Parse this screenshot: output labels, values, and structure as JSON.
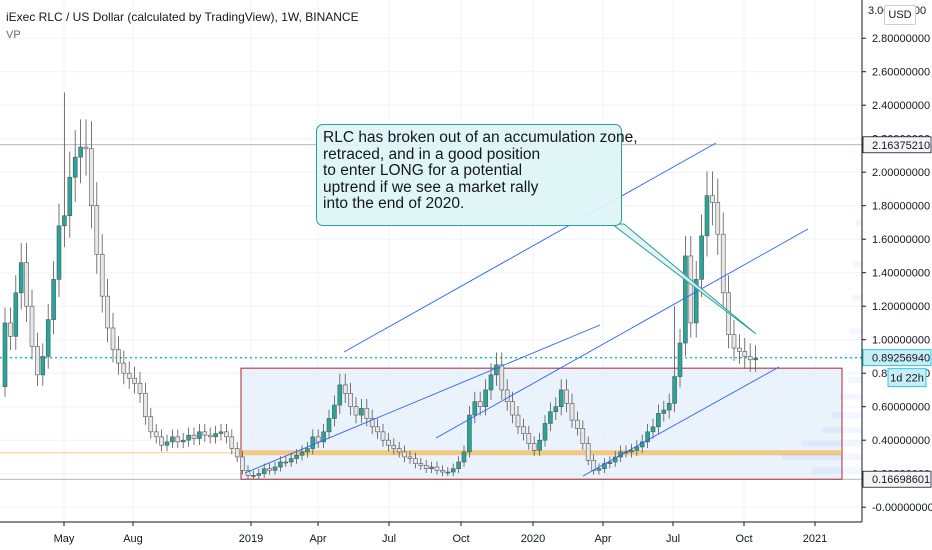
{
  "header": {
    "title": "iExec RLC / US Dollar (calculated by TradingView), 1W, BINANCE",
    "indicator": "VP"
  },
  "currency_button": "USD",
  "countdown_label": "1d 22h",
  "annotation": {
    "lines": [
      "RLC has broken out of an accumulation zone,",
      "retraced, and in a good position",
      "to enter LONG for a potential",
      "uptrend if we see a market rally",
      "into the end of 2020."
    ]
  },
  "colors": {
    "up": "#26a69a",
    "down": "#e8e8e8",
    "candle_border": "#555555",
    "trendline": "#2962ff",
    "last_price": "#00bcd4",
    "zone_fill": "#e3eef9",
    "zone_border": "#a52a2a",
    "support_band": "#f5a623",
    "callout": "#2a9d9d"
  },
  "chart_data": {
    "type": "candlestick",
    "symbol": "iExec RLC / US Dollar",
    "interval": "1W",
    "exchange": "BINANCE",
    "x_tick_labels": [
      "May",
      "Aug",
      "2019",
      "Apr",
      "Jul",
      "Oct",
      "2020",
      "Apr",
      "Jul",
      "Oct",
      "2021"
    ],
    "y_tick_labels": [
      "3.00000000",
      "2.80000000",
      "2.60000000",
      "2.40000000",
      "2.20000000",
      "2.00000000",
      "1.80000000",
      "1.60000000",
      "1.40000000",
      "1.20000000",
      "1.00000000",
      "0.80000000",
      "0.60000000",
      "0.40000000",
      "0.20000000",
      "-0.00000000"
    ],
    "ylim": [
      -0.1,
      3.05
    ],
    "price_labels": [
      {
        "value": 2.1637521,
        "label": "2.16375210"
      },
      {
        "value": 0.8925694,
        "label": "0.89256940"
      },
      {
        "value": 0.16698601,
        "label": "0.16698601"
      }
    ],
    "horizontal_levels": [
      2.1637521,
      0.16698601
    ],
    "last_price": 0.8925694,
    "accumulation_zone": {
      "y_low": 0.16698601,
      "y_high": 0.83,
      "x_start": "2018-12",
      "x_end": "2020-11"
    },
    "support_band": {
      "y_low": 0.31,
      "y_high": 0.34
    },
    "closes": [
      1.1,
      1.02,
      1.28,
      1.46,
      1.2,
      0.96,
      0.79,
      0.9,
      1.12,
      1.36,
      1.68,
      1.74,
      1.97,
      2.09,
      2.15,
      2.14,
      1.8,
      1.51,
      1.26,
      1.07,
      0.94,
      0.86,
      0.8,
      0.77,
      0.74,
      0.68,
      0.54,
      0.45,
      0.42,
      0.37,
      0.39,
      0.42,
      0.39,
      0.4,
      0.43,
      0.41,
      0.45,
      0.43,
      0.42,
      0.44,
      0.45,
      0.42,
      0.35,
      0.3,
      0.22,
      0.19,
      0.19,
      0.2,
      0.23,
      0.22,
      0.24,
      0.27,
      0.27,
      0.29,
      0.31,
      0.33,
      0.35,
      0.42,
      0.39,
      0.45,
      0.53,
      0.61,
      0.73,
      0.68,
      0.6,
      0.55,
      0.59,
      0.53,
      0.48,
      0.45,
      0.4,
      0.37,
      0.35,
      0.33,
      0.3,
      0.29,
      0.26,
      0.25,
      0.23,
      0.24,
      0.22,
      0.21,
      0.21,
      0.23,
      0.27,
      0.33,
      0.55,
      0.63,
      0.6,
      0.7,
      0.79,
      0.85,
      0.7,
      0.63,
      0.55,
      0.48,
      0.44,
      0.38,
      0.34,
      0.4,
      0.5,
      0.57,
      0.6,
      0.7,
      0.62,
      0.52,
      0.47,
      0.38,
      0.28,
      0.22,
      0.23,
      0.26,
      0.27,
      0.3,
      0.33,
      0.33,
      0.34,
      0.36,
      0.39,
      0.45,
      0.48,
      0.56,
      0.58,
      0.62,
      0.78,
      0.98,
      1.5,
      1.1,
      1.36,
      1.62,
      1.86,
      1.82,
      1.63,
      1.28,
      1.03,
      0.95,
      0.93,
      0.9,
      0.88,
      0.89
    ]
  }
}
